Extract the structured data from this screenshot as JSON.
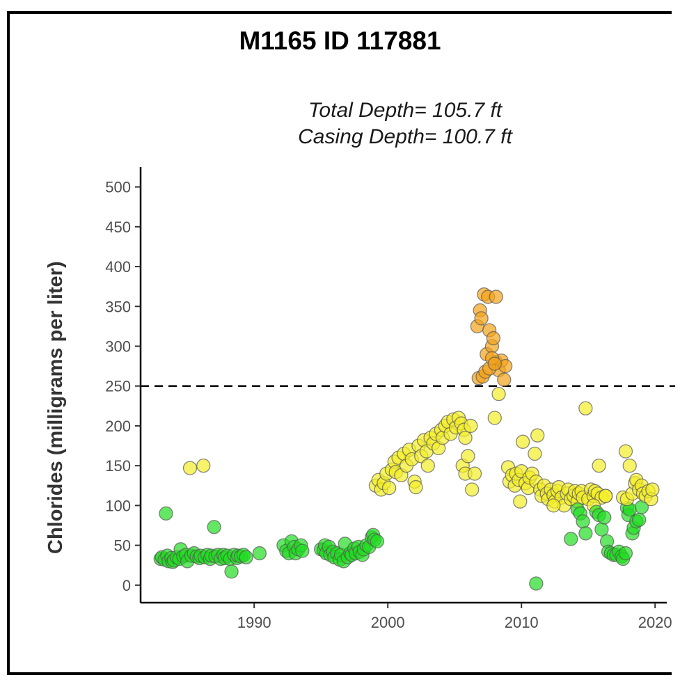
{
  "title": "M1165 ID 117881",
  "subtitle_line1": "Total Depth= 105.7 ft",
  "subtitle_line2": "Casing Depth= 100.7 ft",
  "colors": {
    "green": "#22dd22",
    "yellow": "#f4ee2a",
    "orange": "#f4a21a",
    "reference_line": "#000000"
  },
  "chart_data": {
    "type": "scatter",
    "title": "M1165 ID 117881",
    "subtitle": "Total Depth= 105.7 ft\nCasing Depth= 100.7 ft",
    "xlabel": "",
    "ylabel": "Chlorides (milligrams per liter)",
    "xlim": [
      1981.5,
      2021.5
    ],
    "ylim": [
      -22,
      525
    ],
    "x_ticks": [
      1990,
      2000,
      2010,
      2020
    ],
    "y_ticks": [
      0,
      50,
      100,
      150,
      200,
      250,
      300,
      350,
      400,
      450,
      500
    ],
    "reference_line": {
      "y": 250,
      "style": "dashed"
    },
    "grid": false,
    "legend": "none",
    "points": [
      [
        1983.0,
        33
      ],
      [
        1983.1,
        35
      ],
      [
        1983.3,
        32
      ],
      [
        1983.4,
        90
      ],
      [
        1983.5,
        37
      ],
      [
        1983.6,
        30
      ],
      [
        1983.8,
        34
      ],
      [
        1983.9,
        29
      ],
      [
        1984.0,
        31
      ],
      [
        1984.2,
        35
      ],
      [
        1984.4,
        33
      ],
      [
        1984.5,
        45
      ],
      [
        1984.7,
        36
      ],
      [
        1984.9,
        38
      ],
      [
        1985.0,
        30
      ],
      [
        1985.2,
        147
      ],
      [
        1985.3,
        37
      ],
      [
        1985.5,
        40
      ],
      [
        1985.7,
        36
      ],
      [
        1985.9,
        34
      ],
      [
        1986.0,
        37
      ],
      [
        1986.2,
        150
      ],
      [
        1986.3,
        35
      ],
      [
        1986.5,
        38
      ],
      [
        1986.7,
        33
      ],
      [
        1986.8,
        37
      ],
      [
        1987.0,
        73
      ],
      [
        1987.1,
        36
      ],
      [
        1987.3,
        38
      ],
      [
        1987.5,
        33
      ],
      [
        1987.7,
        38
      ],
      [
        1987.8,
        34
      ],
      [
        1988.0,
        37
      ],
      [
        1988.2,
        33
      ],
      [
        1988.3,
        17
      ],
      [
        1988.5,
        38
      ],
      [
        1988.7,
        34
      ],
      [
        1988.8,
        37
      ],
      [
        1989.0,
        36
      ],
      [
        1989.2,
        38
      ],
      [
        1989.4,
        35
      ],
      [
        1990.4,
        40
      ],
      [
        1992.2,
        50
      ],
      [
        1992.4,
        43
      ],
      [
        1992.6,
        40
      ],
      [
        1992.8,
        55
      ],
      [
        1993.0,
        48
      ],
      [
        1993.1,
        40
      ],
      [
        1993.3,
        45
      ],
      [
        1993.5,
        50
      ],
      [
        1993.6,
        43
      ],
      [
        1995.0,
        45
      ],
      [
        1995.2,
        44
      ],
      [
        1995.3,
        50
      ],
      [
        1995.4,
        40
      ],
      [
        1995.6,
        48
      ],
      [
        1995.7,
        38
      ],
      [
        1995.9,
        42
      ],
      [
        1996.0,
        35
      ],
      [
        1996.2,
        40
      ],
      [
        1996.4,
        32
      ],
      [
        1996.5,
        38
      ],
      [
        1996.7,
        30
      ],
      [
        1996.8,
        52
      ],
      [
        1997.0,
        35
      ],
      [
        1997.2,
        40
      ],
      [
        1997.3,
        38
      ],
      [
        1997.5,
        46
      ],
      [
        1997.6,
        40
      ],
      [
        1997.8,
        48
      ],
      [
        1997.9,
        42
      ],
      [
        1998.1,
        38
      ],
      [
        1998.2,
        45
      ],
      [
        1998.4,
        50
      ],
      [
        1998.6,
        48
      ],
      [
        1998.8,
        60
      ],
      [
        1998.9,
        63
      ],
      [
        1999.0,
        57
      ],
      [
        1999.2,
        55
      ],
      [
        1999.1,
        125
      ],
      [
        1999.3,
        132
      ],
      [
        1999.5,
        120
      ],
      [
        1999.7,
        128
      ],
      [
        1999.9,
        140
      ],
      [
        2000.1,
        122
      ],
      [
        2000.3,
        145
      ],
      [
        2000.5,
        155
      ],
      [
        2000.6,
        142
      ],
      [
        2000.8,
        160
      ],
      [
        2001.0,
        138
      ],
      [
        2001.2,
        165
      ],
      [
        2001.4,
        150
      ],
      [
        2001.6,
        170
      ],
      [
        2001.8,
        158
      ],
      [
        2002.0,
        130
      ],
      [
        2002.1,
        123
      ],
      [
        2002.3,
        175
      ],
      [
        2002.5,
        162
      ],
      [
        2002.7,
        182
      ],
      [
        2002.9,
        168
      ],
      [
        2003.0,
        150
      ],
      [
        2003.2,
        185
      ],
      [
        2003.4,
        178
      ],
      [
        2003.6,
        190
      ],
      [
        2003.8,
        172
      ],
      [
        2004.0,
        195
      ],
      [
        2004.1,
        185
      ],
      [
        2004.3,
        200
      ],
      [
        2004.5,
        205
      ],
      [
        2004.7,
        190
      ],
      [
        2004.9,
        208
      ],
      [
        2005.1,
        198
      ],
      [
        2005.3,
        210
      ],
      [
        2005.5,
        203
      ],
      [
        2005.7,
        195
      ],
      [
        2005.8,
        185
      ],
      [
        2005.6,
        150
      ],
      [
        2005.8,
        140
      ],
      [
        2006.0,
        162
      ],
      [
        2006.2,
        200
      ],
      [
        2006.3,
        120
      ],
      [
        2006.5,
        140
      ],
      [
        2006.7,
        325
      ],
      [
        2006.9,
        345
      ],
      [
        2007.0,
        335
      ],
      [
        2007.2,
        365
      ],
      [
        2007.4,
        290
      ],
      [
        2007.5,
        362
      ],
      [
        2007.6,
        320
      ],
      [
        2007.8,
        300
      ],
      [
        2007.9,
        310
      ],
      [
        2008.1,
        280
      ],
      [
        2008.3,
        270
      ],
      [
        2008.5,
        282
      ],
      [
        2008.7,
        258
      ],
      [
        2008.8,
        275
      ],
      [
        2006.8,
        260
      ],
      [
        2007.1,
        262
      ],
      [
        2007.3,
        268
      ],
      [
        2007.6,
        272
      ],
      [
        2007.8,
        285
      ],
      [
        2008.0,
        278
      ],
      [
        2008.1,
        362
      ],
      [
        2008.0,
        210
      ],
      [
        2008.3,
        240
      ],
      [
        2009.0,
        148
      ],
      [
        2009.1,
        130
      ],
      [
        2009.3,
        138
      ],
      [
        2009.5,
        125
      ],
      [
        2009.6,
        140
      ],
      [
        2009.8,
        132
      ],
      [
        2009.9,
        105
      ],
      [
        2010.0,
        143
      ],
      [
        2010.1,
        180
      ],
      [
        2010.3,
        128
      ],
      [
        2010.5,
        122
      ],
      [
        2010.6,
        135
      ],
      [
        2010.8,
        140
      ],
      [
        2011.0,
        165
      ],
      [
        2011.1,
        130
      ],
      [
        2011.2,
        188
      ],
      [
        2011.4,
        120
      ],
      [
        2011.5,
        112
      ],
      [
        2011.7,
        125
      ],
      [
        2011.9,
        115
      ],
      [
        2012.0,
        108
      ],
      [
        2012.2,
        120
      ],
      [
        2012.4,
        113
      ],
      [
        2012.5,
        105
      ],
      [
        2012.7,
        118
      ],
      [
        2012.8,
        123
      ],
      [
        2013.0,
        110
      ],
      [
        2013.2,
        100
      ],
      [
        2013.4,
        115
      ],
      [
        2013.5,
        120
      ],
      [
        2013.7,
        108
      ],
      [
        2013.9,
        112
      ],
      [
        2014.0,
        118
      ],
      [
        2014.2,
        105
      ],
      [
        2014.3,
        115
      ],
      [
        2014.5,
        118
      ],
      [
        2014.6,
        110
      ],
      [
        2014.8,
        222
      ],
      [
        2015.0,
        108
      ],
      [
        2015.2,
        120
      ],
      [
        2015.4,
        112
      ],
      [
        2015.5,
        118
      ],
      [
        2015.7,
        115
      ],
      [
        2015.8,
        150
      ],
      [
        2016.0,
        110
      ],
      [
        2016.3,
        112
      ],
      [
        2011.1,
        2
      ],
      [
        2012.4,
        100
      ],
      [
        2013.7,
        58
      ],
      [
        2014.2,
        95
      ],
      [
        2014.4,
        90
      ],
      [
        2014.6,
        80
      ],
      [
        2014.8,
        65
      ],
      [
        2015.4,
        100
      ],
      [
        2015.6,
        92
      ],
      [
        2015.8,
        88
      ],
      [
        2016.0,
        70
      ],
      [
        2016.2,
        85
      ],
      [
        2016.4,
        55
      ],
      [
        2016.5,
        42
      ],
      [
        2016.7,
        40
      ],
      [
        2016.9,
        38
      ],
      [
        2017.1,
        38
      ],
      [
        2017.3,
        42
      ],
      [
        2017.5,
        36
      ],
      [
        2017.6,
        33
      ],
      [
        2017.8,
        40
      ],
      [
        2017.9,
        97
      ],
      [
        2018.0,
        88
      ],
      [
        2018.1,
        95
      ],
      [
        2018.3,
        65
      ],
      [
        2018.4,
        72
      ],
      [
        2018.6,
        80
      ],
      [
        2018.8,
        82
      ],
      [
        2019.0,
        98
      ],
      [
        2016.3,
        112
      ],
      [
        2017.6,
        110
      ],
      [
        2017.8,
        168
      ],
      [
        2017.9,
        108
      ],
      [
        2018.1,
        150
      ],
      [
        2018.3,
        115
      ],
      [
        2018.5,
        128
      ],
      [
        2018.6,
        132
      ],
      [
        2018.8,
        120
      ],
      [
        2019.0,
        125
      ],
      [
        2019.1,
        115
      ],
      [
        2019.3,
        112
      ],
      [
        2019.5,
        118
      ],
      [
        2019.7,
        108
      ],
      [
        2019.8,
        120
      ]
    ]
  }
}
